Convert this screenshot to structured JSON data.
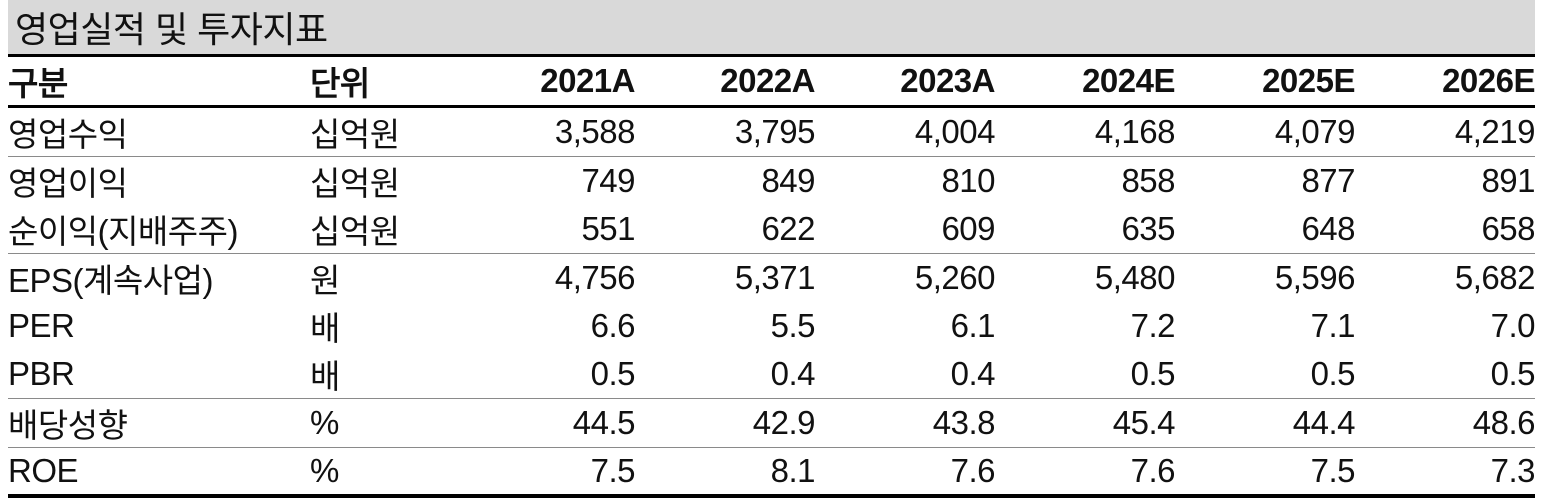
{
  "title": "영업실적 및 투자지표",
  "table": {
    "columns": [
      "구분",
      "단위",
      "2021A",
      "2022A",
      "2023A",
      "2024E",
      "2025E",
      "2026E"
    ],
    "rows": [
      {
        "label": "영업수익",
        "unit": "십억원",
        "values": [
          "3,588",
          "3,795",
          "4,004",
          "4,168",
          "4,079",
          "4,219"
        ],
        "group_end": true
      },
      {
        "label": "영업이익",
        "unit": "십억원",
        "values": [
          "749",
          "849",
          "810",
          "858",
          "877",
          "891"
        ],
        "group_end": false
      },
      {
        "label": "순이익(지배주주)",
        "unit": "십억원",
        "values": [
          "551",
          "622",
          "609",
          "635",
          "648",
          "658"
        ],
        "group_end": true
      },
      {
        "label": "EPS(계속사업)",
        "unit": "원",
        "values": [
          "4,756",
          "5,371",
          "5,260",
          "5,480",
          "5,596",
          "5,682"
        ],
        "group_end": false
      },
      {
        "label": "PER",
        "unit": "배",
        "values": [
          "6.6",
          "5.5",
          "6.1",
          "7.2",
          "7.1",
          "7.0"
        ],
        "group_end": false
      },
      {
        "label": "PBR",
        "unit": "배",
        "values": [
          "0.5",
          "0.4",
          "0.4",
          "0.5",
          "0.5",
          "0.5"
        ],
        "group_end": true
      },
      {
        "label": "배당성향",
        "unit": "%",
        "values": [
          "44.5",
          "42.9",
          "43.8",
          "45.4",
          "44.4",
          "48.6"
        ],
        "group_end": true
      },
      {
        "label": "ROE",
        "unit": "%",
        "values": [
          "7.5",
          "8.1",
          "7.6",
          "7.6",
          "7.5",
          "7.3"
        ],
        "group_end": false
      }
    ]
  },
  "colors": {
    "title_background": "#d9d9d9",
    "heavy_rule": "#000000",
    "light_rule": "#8a8a8a",
    "text": "#111111"
  }
}
